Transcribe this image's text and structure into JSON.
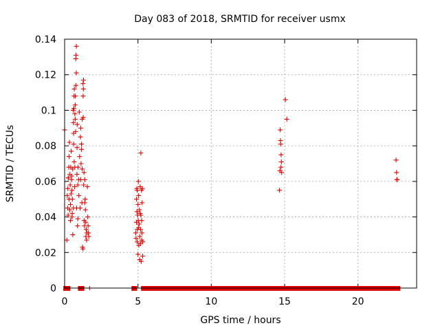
{
  "chart_data": {
    "type": "scatter",
    "title": "Day 083 of 2018, SRMTID for receiver usmx",
    "xlabel": "GPS time / hours",
    "ylabel": "SRMTID / TECUs",
    "xlim": [
      0,
      24
    ],
    "ylim": [
      0,
      0.14
    ],
    "x_ticks": [
      0,
      5,
      10,
      15,
      20
    ],
    "x_tick_labels": [
      "0",
      "5",
      "10",
      "15",
      "20"
    ],
    "y_ticks": [
      0,
      0.02,
      0.04,
      0.06,
      0.08,
      0.1,
      0.12,
      0.14
    ],
    "y_tick_labels": [
      "0",
      "0.02",
      "0.04",
      "0.06",
      "0.08",
      "0.1",
      "0.12",
      "0.14"
    ],
    "grid": true,
    "marker": "plus",
    "color": "#e00000",
    "zero_runs": [
      [
        0.05,
        0.25
      ],
      [
        1.05,
        1.2
      ],
      [
        4.7,
        4.8
      ],
      [
        5.35,
        14.65
      ],
      [
        14.8,
        22.75
      ]
    ],
    "zero_isolated": [
      1.7
    ],
    "points": [
      [
        0.0,
        0.089
      ],
      [
        0.15,
        0.027
      ],
      [
        0.18,
        0.052
      ],
      [
        0.2,
        0.045
      ],
      [
        0.22,
        0.056
      ],
      [
        0.24,
        0.041
      ],
      [
        0.26,
        0.062
      ],
      [
        0.28,
        0.068
      ],
      [
        0.3,
        0.074
      ],
      [
        0.3,
        0.05
      ],
      [
        0.33,
        0.082
      ],
      [
        0.35,
        0.044
      ],
      [
        0.36,
        0.064
      ],
      [
        0.38,
        0.058
      ],
      [
        0.4,
        0.047
      ],
      [
        0.4,
        0.038
      ],
      [
        0.42,
        0.068
      ],
      [
        0.44,
        0.053
      ],
      [
        0.45,
        0.077
      ],
      [
        0.47,
        0.061
      ],
      [
        0.48,
        0.063
      ],
      [
        0.5,
        0.04
      ],
      [
        0.5,
        0.055
      ],
      [
        0.52,
        0.042
      ],
      [
        0.53,
        0.05
      ],
      [
        0.55,
        0.067
      ],
      [
        0.56,
        0.03
      ],
      [
        0.58,
        0.1
      ],
      [
        0.6,
        0.093
      ],
      [
        0.6,
        0.045
      ],
      [
        0.61,
        0.087
      ],
      [
        0.62,
        0.081
      ],
      [
        0.63,
        0.101
      ],
      [
        0.64,
        0.108
      ],
      [
        0.66,
        0.112
      ],
      [
        0.68,
        0.057
      ],
      [
        0.7,
        0.068
      ],
      [
        0.7,
        0.098
      ],
      [
        0.72,
        0.095
      ],
      [
        0.72,
        0.103
      ],
      [
        0.73,
        0.108
      ],
      [
        0.75,
        0.088
      ],
      [
        0.76,
        0.129
      ],
      [
        0.77,
        0.114
      ],
      [
        0.78,
        0.131
      ],
      [
        0.8,
        0.136
      ],
      [
        0.8,
        0.121
      ],
      [
        0.82,
        0.045
      ],
      [
        0.84,
        0.064
      ],
      [
        0.85,
        0.079
      ],
      [
        0.86,
        0.092
      ],
      [
        0.88,
        0.035
      ],
      [
        0.9,
        0.039
      ],
      [
        0.92,
        0.068
      ],
      [
        0.95,
        0.061
      ],
      [
        0.97,
        0.052
      ],
      [
        1.0,
        0.099
      ],
      [
        1.02,
        0.074
      ],
      [
        1.05,
        0.045
      ],
      [
        1.08,
        0.085
      ],
      [
        1.1,
        0.061
      ],
      [
        1.12,
        0.07
      ],
      [
        1.15,
        0.078
      ],
      [
        1.18,
        0.048
      ],
      [
        1.2,
        0.067
      ],
      [
        1.22,
        0.023
      ],
      [
        1.25,
        0.022
      ],
      [
        1.25,
        0.115
      ],
      [
        1.26,
        0.108
      ],
      [
        1.27,
        0.096
      ],
      [
        1.28,
        0.112
      ],
      [
        1.29,
        0.117
      ],
      [
        1.3,
        0.058
      ],
      [
        1.32,
        0.065
      ],
      [
        1.33,
        0.038
      ],
      [
        1.35,
        0.035
      ],
      [
        1.37,
        0.048
      ],
      [
        1.38,
        0.061
      ],
      [
        1.4,
        0.05
      ],
      [
        1.42,
        0.044
      ],
      [
        1.44,
        0.037
      ],
      [
        1.45,
        0.029
      ],
      [
        1.47,
        0.033
      ],
      [
        1.5,
        0.027
      ],
      [
        1.52,
        0.031
      ],
      [
        1.55,
        0.057
      ],
      [
        1.58,
        0.04
      ],
      [
        1.6,
        0.035
      ],
      [
        1.62,
        0.031
      ],
      [
        1.65,
        0.029
      ],
      [
        1.1,
        0.09
      ],
      [
        1.15,
        0.081
      ],
      [
        1.2,
        0.095
      ],
      [
        0.65,
        0.071
      ],
      [
        0.25,
        0.062
      ],
      [
        0.9,
        0.058
      ],
      [
        4.85,
        0.031
      ],
      [
        4.87,
        0.028
      ],
      [
        4.9,
        0.037
      ],
      [
        4.9,
        0.05
      ],
      [
        4.92,
        0.056
      ],
      [
        4.93,
        0.043
      ],
      [
        4.95,
        0.026
      ],
      [
        4.96,
        0.033
      ],
      [
        4.98,
        0.041
      ],
      [
        5.0,
        0.047
      ],
      [
        5.0,
        0.019
      ],
      [
        5.02,
        0.038
      ],
      [
        5.03,
        0.06
      ],
      [
        5.05,
        0.052
      ],
      [
        5.06,
        0.024
      ],
      [
        5.08,
        0.036
      ],
      [
        5.1,
        0.044
      ],
      [
        5.12,
        0.016
      ],
      [
        5.13,
        0.029
      ],
      [
        5.15,
        0.057
      ],
      [
        5.17,
        0.025
      ],
      [
        5.18,
        0.033
      ],
      [
        5.2,
        0.041
      ],
      [
        5.2,
        0.076
      ],
      [
        5.22,
        0.015
      ],
      [
        5.24,
        0.055
      ],
      [
        5.25,
        0.038
      ],
      [
        5.27,
        0.031
      ],
      [
        5.28,
        0.048
      ],
      [
        5.3,
        0.056
      ],
      [
        5.32,
        0.018
      ],
      [
        5.33,
        0.026
      ],
      [
        4.95,
        0.055
      ],
      [
        5.05,
        0.034
      ],
      [
        5.15,
        0.042
      ],
      [
        5.25,
        0.027
      ],
      [
        14.65,
        0.055
      ],
      [
        14.68,
        0.066
      ],
      [
        14.7,
        0.089
      ],
      [
        14.72,
        0.083
      ],
      [
        14.73,
        0.081
      ],
      [
        14.75,
        0.068
      ],
      [
        14.76,
        0.075
      ],
      [
        14.78,
        0.071
      ],
      [
        14.8,
        0.065
      ],
      [
        15.05,
        0.106
      ],
      [
        15.15,
        0.095
      ],
      [
        22.6,
        0.072
      ],
      [
        22.63,
        0.065
      ],
      [
        22.65,
        0.061
      ],
      [
        22.68,
        0.061
      ]
    ]
  }
}
